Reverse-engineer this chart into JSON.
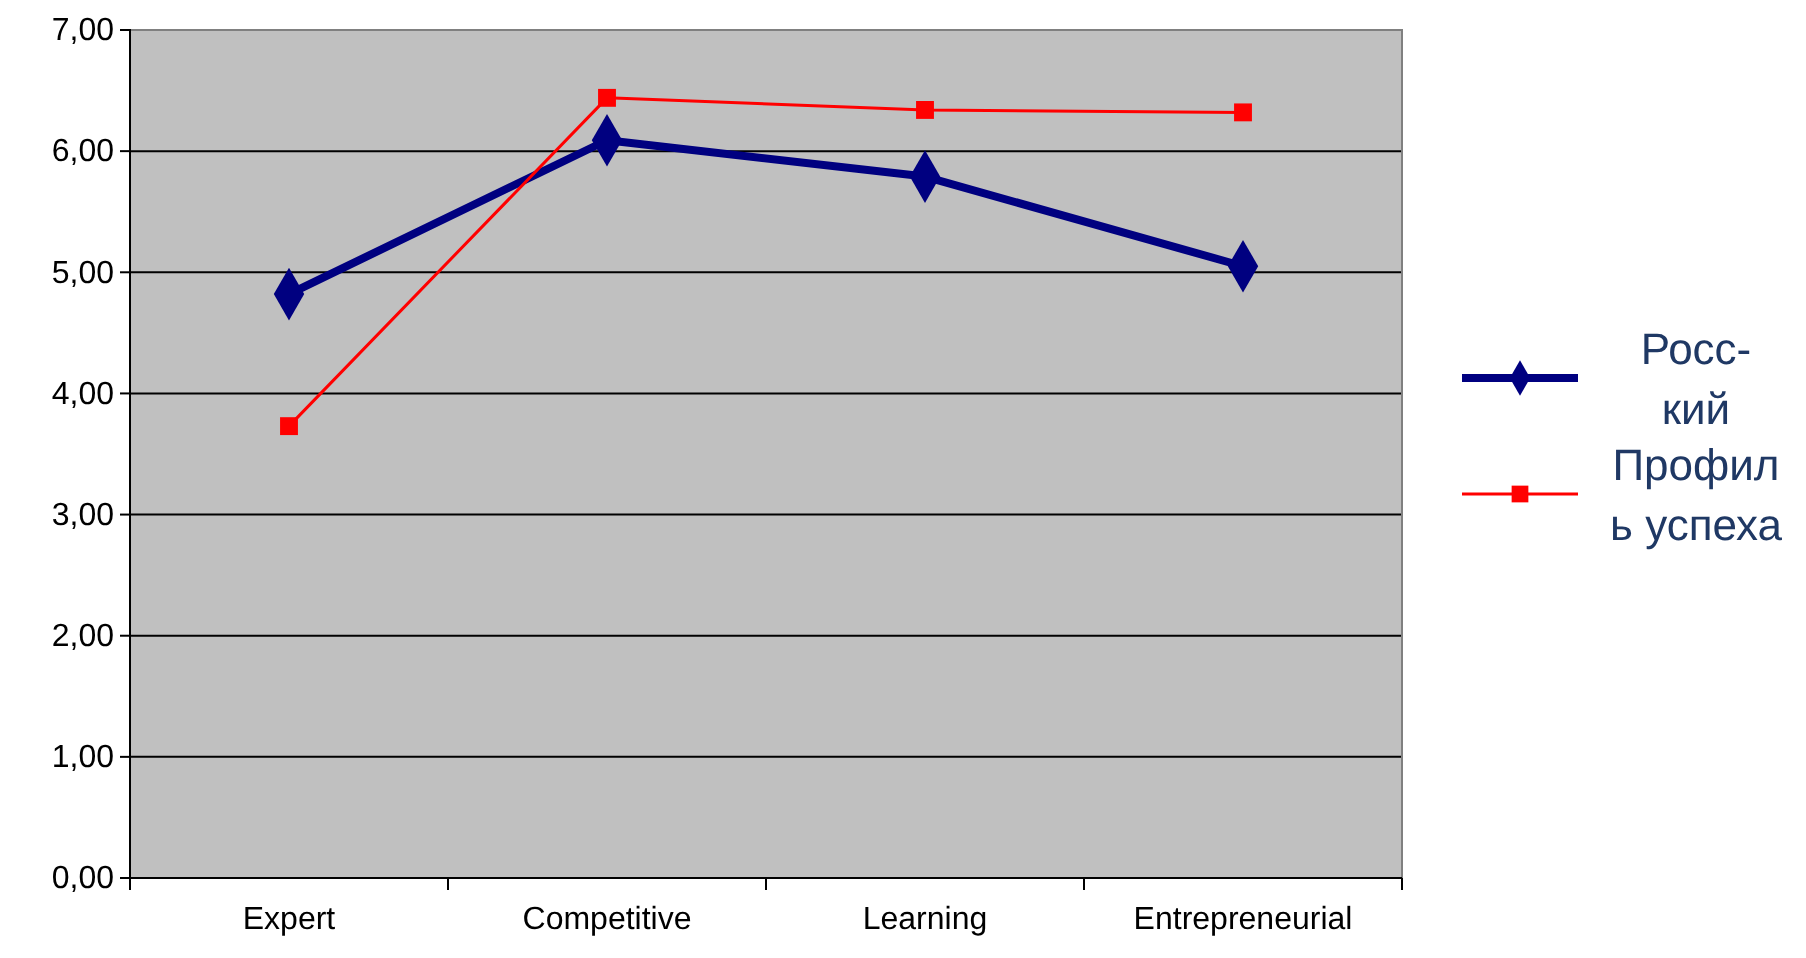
{
  "chart_data": {
    "type": "line",
    "categories": [
      "Expert",
      "Competitive",
      "Learning",
      "Entrepreneurial"
    ],
    "series": [
      {
        "name": "Росс-\nкий",
        "color": "#000080",
        "marker": "diamond",
        "values": [
          4.82,
          6.09,
          5.79,
          5.05
        ]
      },
      {
        "name": "Профил\nь успеха",
        "color": "#ff0000",
        "marker": "square",
        "values": [
          3.73,
          6.44,
          6.34,
          6.32
        ]
      }
    ],
    "ylim": [
      0,
      7
    ],
    "yticks": [
      {
        "value": 0,
        "label": "0,00"
      },
      {
        "value": 1,
        "label": "1,00"
      },
      {
        "value": 2,
        "label": "2,00"
      },
      {
        "value": 3,
        "label": "3,00"
      },
      {
        "value": 4,
        "label": "4,00"
      },
      {
        "value": 5,
        "label": "5,00"
      },
      {
        "value": 6,
        "label": "6,00"
      },
      {
        "value": 7,
        "label": "7,00"
      }
    ],
    "grid": "y",
    "legend": "right",
    "line_style": "solid"
  }
}
